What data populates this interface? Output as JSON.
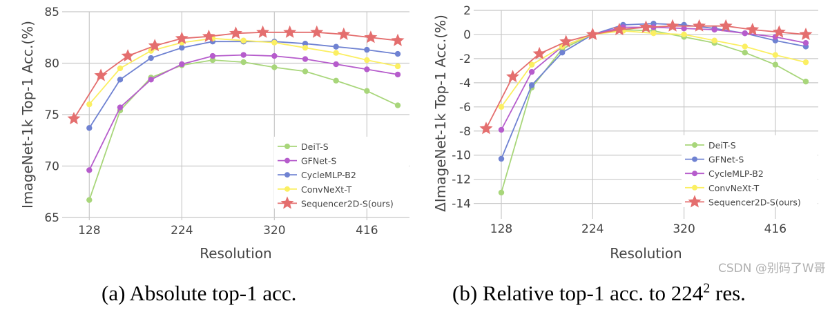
{
  "chart_data": [
    {
      "type": "line",
      "caption": "(a) Absolute top-1 acc.",
      "xlabel": "Resolution",
      "ylabel": "ImageNet-1k Top-1 Acc.(%)",
      "xticks": [
        128,
        224,
        320,
        416
      ],
      "yticks": [
        65,
        70,
        75,
        80,
        85
      ],
      "xlim": [
        96,
        470
      ],
      "ylim": [
        65,
        85
      ],
      "grid": true,
      "legend_position": "bottom-right",
      "series": [
        {
          "name": "DeiT-S",
          "color": "#a8d67a",
          "marker": "circle",
          "x": [
            128,
            160,
            192,
            224,
            256,
            288,
            320,
            352,
            384,
            416,
            448
          ],
          "y": [
            66.7,
            75.4,
            78.6,
            79.8,
            80.3,
            80.1,
            79.6,
            79.2,
            78.3,
            77.3,
            75.9
          ]
        },
        {
          "name": "GFNet-S",
          "color": "#b65ccc",
          "marker": "circle",
          "x": [
            128,
            160,
            192,
            224,
            256,
            288,
            320,
            352,
            384,
            416,
            448
          ],
          "y": [
            69.6,
            75.7,
            78.4,
            79.9,
            80.7,
            80.8,
            80.7,
            80.4,
            79.9,
            79.4,
            78.9
          ]
        },
        {
          "name": "CycleMLP-B2",
          "color": "#6f82d2",
          "marker": "circle",
          "x": [
            128,
            160,
            192,
            224,
            256,
            288,
            320,
            352,
            384,
            416,
            448
          ],
          "y": [
            73.7,
            78.4,
            80.5,
            81.5,
            82.1,
            82.1,
            82.1,
            81.9,
            81.6,
            81.3,
            80.9
          ]
        },
        {
          "name": "ConvNeXt-T",
          "color": "#fbef62",
          "marker": "circle",
          "x": [
            128,
            160,
            192,
            224,
            256,
            288,
            320,
            352,
            384,
            416,
            448
          ],
          "y": [
            76.0,
            79.5,
            81.2,
            82.0,
            82.4,
            82.2,
            82.0,
            81.5,
            81.0,
            80.3,
            79.7
          ]
        },
        {
          "name": "Sequencer2D-S(ours)",
          "color": "#e46e6e",
          "marker": "star",
          "x": [
            112,
            140,
            168,
            196,
            224,
            252,
            280,
            308,
            336,
            364,
            392,
            420,
            448
          ],
          "y": [
            74.6,
            78.8,
            80.7,
            81.7,
            82.4,
            82.6,
            82.9,
            83.0,
            83.0,
            83.0,
            82.8,
            82.5,
            82.2
          ]
        }
      ]
    },
    {
      "type": "line",
      "caption": "(b) Relative top-1 acc. to 224",
      "caption_sup": "2",
      "caption_tail": " res.",
      "xlabel": "Resolution",
      "ylabel": "ΔImageNet-1k Top-1 Acc.(%)",
      "xticks": [
        128,
        224,
        320,
        416
      ],
      "yticks": [
        -14,
        -12,
        -10,
        -8,
        -6,
        -4,
        -2,
        0,
        2
      ],
      "xlim": [
        96,
        470
      ],
      "ylim": [
        -15,
        2
      ],
      "grid": true,
      "legend_position": "bottom-right",
      "series": [
        {
          "name": "DeiT-S",
          "color": "#a8d67a",
          "marker": "circle",
          "x": [
            128,
            160,
            192,
            224,
            256,
            288,
            320,
            352,
            384,
            416,
            448
          ],
          "y": [
            -13.1,
            -4.4,
            -1.2,
            0,
            0.4,
            0.3,
            -0.2,
            -0.7,
            -1.5,
            -2.5,
            -3.9
          ]
        },
        {
          "name": "GFNet-S",
          "color": "#6f82d2",
          "marker": "circle",
          "x": [
            128,
            160,
            192,
            224,
            256,
            288,
            320,
            352,
            384,
            416,
            448
          ],
          "y": [
            -10.3,
            -4.2,
            -1.5,
            0,
            0.8,
            0.9,
            0.8,
            0.5,
            0.1,
            -0.5,
            -1.0
          ]
        },
        {
          "name": "CycleMLP-B2",
          "color": "#b65ccc",
          "marker": "circle",
          "x": [
            128,
            160,
            192,
            224,
            256,
            288,
            320,
            352,
            384,
            416,
            448
          ],
          "y": [
            -7.9,
            -3.1,
            -1.0,
            0,
            0.6,
            0.6,
            0.5,
            0.4,
            0.1,
            -0.2,
            -0.7
          ]
        },
        {
          "name": "ConvNeXt-T",
          "color": "#fbef62",
          "marker": "circle",
          "x": [
            128,
            160,
            192,
            224,
            256,
            288,
            320,
            352,
            384,
            416,
            448
          ],
          "y": [
            -6.0,
            -2.5,
            -1.0,
            0,
            0.3,
            0.1,
            0,
            -0.5,
            -1.0,
            -1.7,
            -2.3
          ]
        },
        {
          "name": "Sequencer2D-S(ours)",
          "color": "#e46e6e",
          "marker": "star",
          "x": [
            112,
            140,
            168,
            196,
            224,
            252,
            280,
            308,
            336,
            364,
            392,
            420,
            448
          ],
          "y": [
            -7.8,
            -3.5,
            -1.6,
            -0.6,
            0,
            0.4,
            0.6,
            0.7,
            0.7,
            0.7,
            0.4,
            0.2,
            0.0
          ]
        }
      ]
    }
  ],
  "watermark": "CSDN @别码了W哥"
}
